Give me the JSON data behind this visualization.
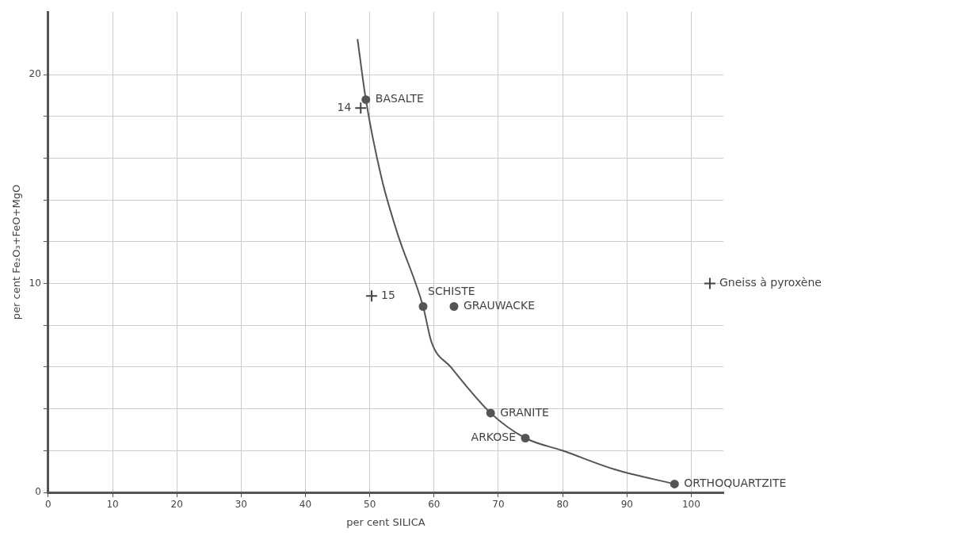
{
  "chart_data": {
    "type": "scatter",
    "xlabel": "per cent SILICA",
    "ylabel": "per cent Fe₂O₃+FeO+MgO",
    "xlim": [
      0,
      105
    ],
    "ylim": [
      0,
      23
    ],
    "xticks": [
      0,
      10,
      20,
      30,
      40,
      50,
      60,
      70,
      80,
      90,
      100
    ],
    "yticks": [
      0,
      {
        "value": 2,
        "label": null
      },
      {
        "value": 4,
        "label": null
      },
      {
        "value": 6,
        "label": null
      },
      {
        "value": 8,
        "label": null
      },
      10,
      {
        "value": 12,
        "label": null
      },
      {
        "value": 14,
        "label": null
      },
      {
        "value": 16,
        "label": null
      },
      {
        "value": 18,
        "label": null
      },
      20
    ],
    "grid": true,
    "series": [
      {
        "type": "line",
        "marker": "none",
        "color": "#555555",
        "x": [
          48.1,
          49.4,
          51.8,
          54.2,
          58.3,
          59.6,
          62.6,
          68.8,
          74.2,
          80,
          88.1,
          97.4
        ],
        "values": [
          21.7,
          18.8,
          15.1,
          12.5,
          8.9,
          7.2,
          6.0,
          3.8,
          2.6,
          2.0,
          1.1,
          0.4
        ]
      },
      {
        "marker": "circle",
        "color": "#555555",
        "x": [
          49.4,
          58.3,
          63.1,
          68.8,
          74.2,
          97.4
        ],
        "values": [
          18.8,
          8.9,
          8.9,
          3.8,
          2.6,
          0.4
        ]
      },
      {
        "marker": "cross",
        "color": "#444444",
        "x": [
          48.6,
          50.3,
          102.9
        ],
        "values": [
          18.4,
          9.4,
          10
        ]
      }
    ],
    "annotations": [
      {
        "text": "14",
        "x": 48.6,
        "y": 18.4
      },
      {
        "text": "15",
        "x": 50.3,
        "y": 9.4
      },
      {
        "text": "BASALTE",
        "x": 49.4,
        "y": 18.8
      },
      {
        "text": "SCHISTE",
        "x": 58.3,
        "y": 8.9
      },
      {
        "text": "GRAUWACKE",
        "x": 63.1,
        "y": 8.9
      },
      {
        "text": "GRANITE",
        "x": 68.8,
        "y": 3.8
      },
      {
        "text": "ARKOSE",
        "x": 74.2,
        "y": 2.6
      },
      {
        "text": "ORTHOQUARTZITE",
        "x": 97.4,
        "y": 0.4
      },
      {
        "text": "Gneiss à pyroxène",
        "x": 102.9,
        "y": 10
      }
    ]
  }
}
